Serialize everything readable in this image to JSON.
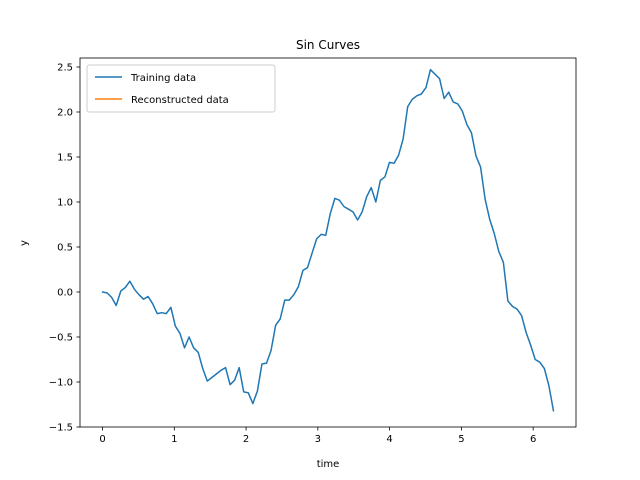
{
  "chart_data": {
    "type": "line",
    "title": "Sin Curves",
    "xlabel": "time",
    "ylabel": "y",
    "xlim": [
      -0.314,
      6.597
    ],
    "ylim": [
      -1.5,
      2.6
    ],
    "xticks": [
      0,
      1,
      2,
      3,
      4,
      5,
      6
    ],
    "yticks": [
      -1.5,
      -1.0,
      -0.5,
      0.0,
      0.5,
      1.0,
      1.5,
      2.0,
      2.5
    ],
    "ytick_labels": [
      "−1.5",
      "−1.0",
      "−0.5",
      "0.0",
      "0.5",
      "1.0",
      "1.5",
      "2.0",
      "2.5"
    ],
    "grid": false,
    "legend_position": "upper-left",
    "series": [
      {
        "name": "Training data",
        "color": "#1f77b4",
        "x": [
          0.0,
          0.063,
          0.127,
          0.19,
          0.254,
          0.317,
          0.381,
          0.444,
          0.508,
          0.571,
          0.635,
          0.698,
          0.762,
          0.825,
          0.888,
          0.952,
          1.015,
          1.079,
          1.142,
          1.206,
          1.269,
          1.333,
          1.396,
          1.46,
          1.523,
          1.587,
          1.65,
          1.714,
          1.777,
          1.84,
          1.904,
          1.967,
          2.031,
          2.094,
          2.158,
          2.221,
          2.285,
          2.348,
          2.412,
          2.475,
          2.539,
          2.602,
          2.665,
          2.729,
          2.792,
          2.856,
          2.919,
          2.983,
          3.046,
          3.11,
          3.173,
          3.237,
          3.3,
          3.363,
          3.427,
          3.49,
          3.554,
          3.617,
          3.681,
          3.744,
          3.808,
          3.871,
          3.935,
          3.998,
          4.062,
          4.125,
          4.188,
          4.252,
          4.315,
          4.379,
          4.442,
          4.506,
          4.569,
          4.633,
          4.696,
          4.76,
          4.823,
          4.887,
          4.95,
          5.013,
          5.077,
          5.14,
          5.204,
          5.267,
          5.331,
          5.394,
          5.458,
          5.521,
          5.585,
          5.648,
          5.712,
          5.775,
          5.838,
          5.902,
          5.965,
          6.029,
          6.092,
          6.156,
          6.219,
          6.283
        ],
        "y": [
          0.0,
          -0.01,
          -0.06,
          -0.15,
          0.01,
          0.05,
          0.12,
          0.03,
          -0.03,
          -0.08,
          -0.05,
          -0.13,
          -0.24,
          -0.23,
          -0.24,
          -0.17,
          -0.38,
          -0.46,
          -0.62,
          -0.5,
          -0.62,
          -0.67,
          -0.85,
          -0.99,
          -0.95,
          -0.91,
          -0.87,
          -0.84,
          -1.03,
          -0.98,
          -0.84,
          -1.11,
          -1.12,
          -1.24,
          -1.1,
          -0.8,
          -0.79,
          -0.65,
          -0.37,
          -0.3,
          -0.09,
          -0.09,
          -0.03,
          0.06,
          0.24,
          0.27,
          0.43,
          0.59,
          0.64,
          0.63,
          0.87,
          1.04,
          1.02,
          0.95,
          0.92,
          0.89,
          0.8,
          0.89,
          1.06,
          1.16,
          1.0,
          1.24,
          1.28,
          1.44,
          1.43,
          1.52,
          1.7,
          2.06,
          2.14,
          2.18,
          2.2,
          2.27,
          2.47,
          2.42,
          2.37,
          2.15,
          2.22,
          2.11,
          2.09,
          2.01,
          1.86,
          1.77,
          1.51,
          1.39,
          1.03,
          0.81,
          0.65,
          0.45,
          0.33,
          -0.1,
          -0.16,
          -0.19,
          -0.26,
          -0.45,
          -0.59,
          -0.75,
          -0.78,
          -0.85,
          -1.04,
          -1.32
        ]
      },
      {
        "name": "Reconstructed data",
        "color": "#ff7f0e",
        "x": [],
        "y": []
      }
    ]
  }
}
